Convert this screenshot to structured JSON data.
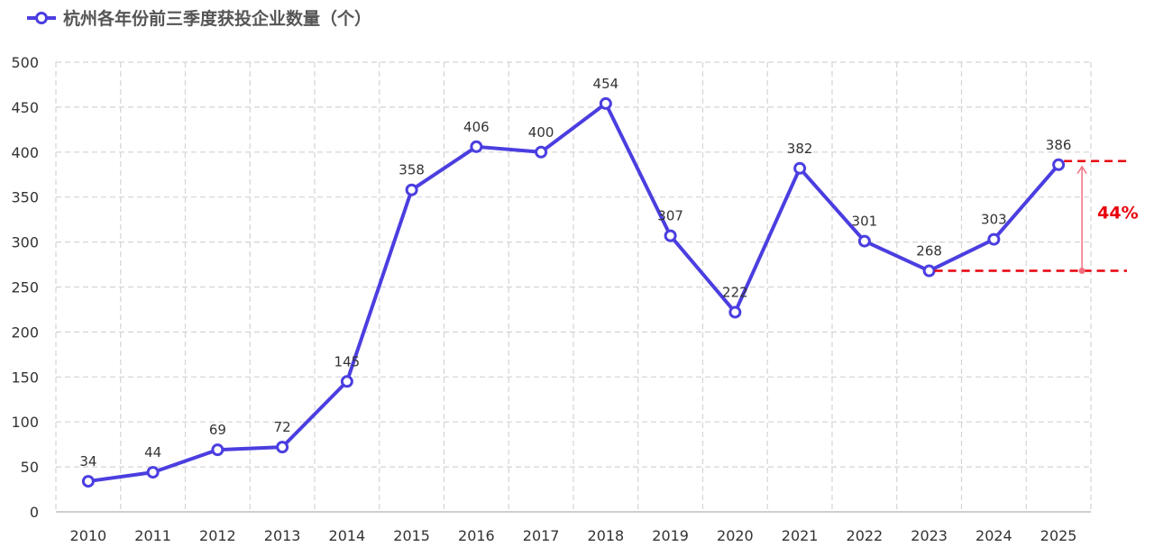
{
  "chart_data": {
    "type": "line",
    "x": [
      "2010",
      "2011",
      "2012",
      "2013",
      "2014",
      "2015",
      "2016",
      "2017",
      "2018",
      "2019",
      "2020",
      "2021",
      "2022",
      "2023",
      "2024",
      "2025"
    ],
    "series": [
      {
        "name": "杭州各年份前三季度获投企业数量（个）",
        "values": [
          34,
          44,
          69,
          72,
          145,
          358,
          406,
          400,
          454,
          307,
          222,
          382,
          301,
          268,
          303,
          386
        ],
        "color": "#4b3ee0"
      }
    ],
    "yticks": [
      "0",
      "50",
      "100",
      "150",
      "200",
      "250",
      "300",
      "350",
      "400",
      "450",
      "500"
    ],
    "ylim": [
      0,
      500
    ],
    "grid": true,
    "legend_position": "top-left",
    "annotation": {
      "label": "44%",
      "from_value": 268,
      "to_value": 386,
      "color": "#e8000b"
    }
  }
}
